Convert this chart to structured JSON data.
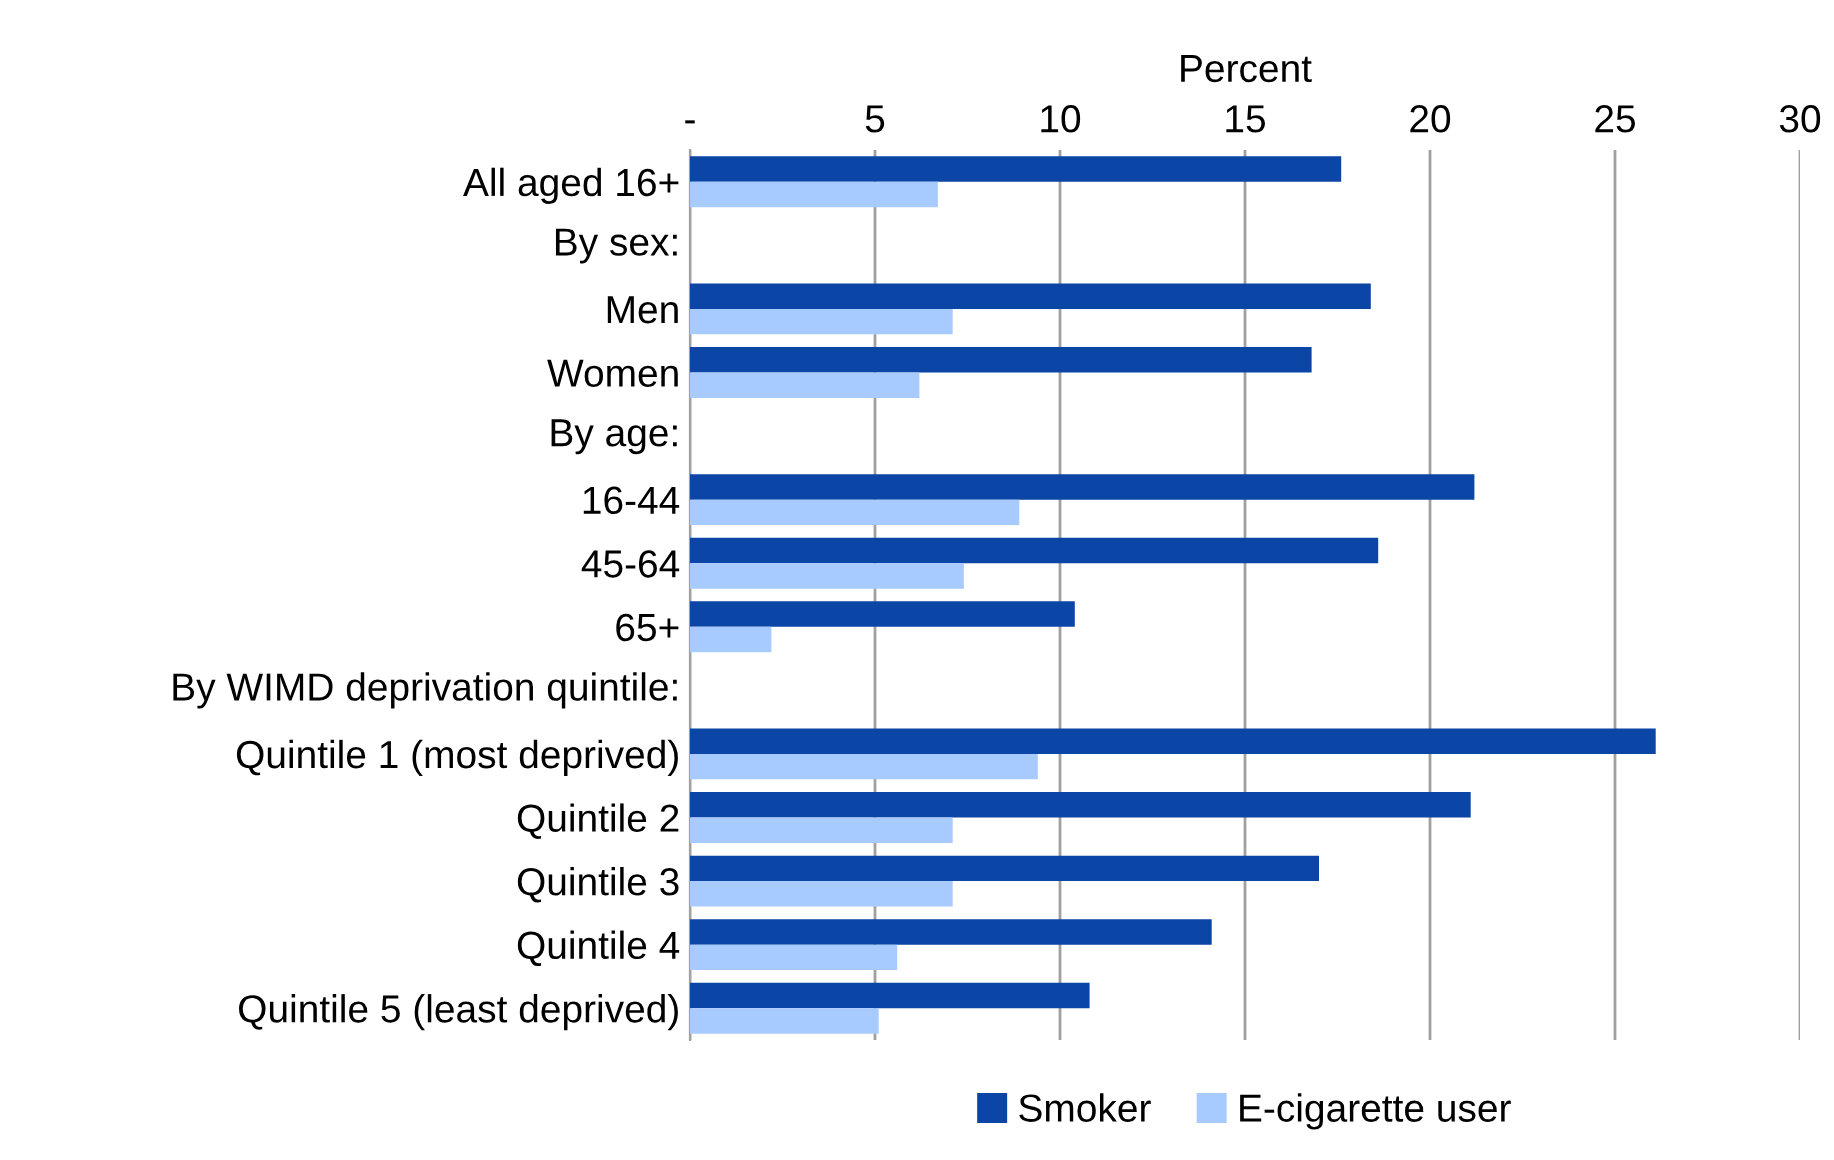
{
  "chart_data": {
    "type": "bar",
    "orientation": "horizontal",
    "xlabel": "Percent",
    "annotations": [
      "By sex:",
      "By age:",
      "By WIMD deprivation quintile:"
    ],
    "categories": [
      "All aged 16+",
      null,
      "Men",
      "Women",
      null,
      "16-44",
      "45-64",
      "65+",
      null,
      "Quintile 1 (most deprived)",
      "Quintile 2",
      "Quintile 3",
      "Quintile 4",
      "Quintile 5 (least deprived)"
    ],
    "series": [
      {
        "name": "Smoker",
        "color": "#0b45a6",
        "values": [
          17.6,
          null,
          18.4,
          16.8,
          null,
          21.2,
          18.6,
          10.4,
          null,
          26.1,
          21.1,
          17.0,
          14.1,
          10.8
        ]
      },
      {
        "name": "E-cigarette user",
        "color": "#a8cbff",
        "values": [
          6.7,
          null,
          7.1,
          6.2,
          null,
          8.9,
          7.4,
          2.2,
          null,
          9.4,
          7.1,
          7.1,
          5.6,
          5.1
        ]
      }
    ],
    "xlim": [
      0,
      30
    ],
    "xticks": [
      {
        "value": 0,
        "label": "-"
      },
      5,
      10,
      15,
      20,
      25,
      30
    ],
    "grid": "x",
    "legend": "bottom"
  }
}
